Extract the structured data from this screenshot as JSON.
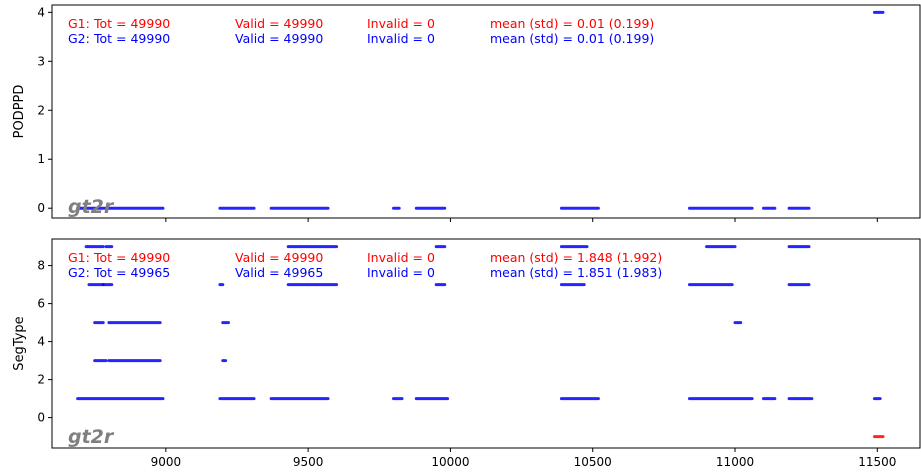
{
  "chart_data": [
    {
      "type": "scatter",
      "ylabel": "PODPPD",
      "ylim": [
        -0.2,
        4.15
      ],
      "yticks": [
        0,
        1,
        2,
        3,
        4
      ],
      "xlim": [
        8600,
        11650
      ],
      "xticks": [
        9000,
        9500,
        10000,
        10500,
        11000,
        11500
      ],
      "watermark": "gt2r",
      "stats": [
        {
          "group": "G1:",
          "tot": "Tot = 49990",
          "valid": "Valid = 49990",
          "invalid": "Invalid = 0",
          "mean": "mean (std) = 0.01 (0.199)",
          "color": "#ff0000"
        },
        {
          "group": "G2:",
          "tot": "Tot = 49990",
          "valid": "Valid = 49990",
          "invalid": "Invalid = 0",
          "mean": "mean (std) = 0.01 (0.199)",
          "color": "#0000ff"
        }
      ],
      "series": [
        {
          "color": "#0000ff",
          "segments": [
            {
              "y": 0,
              "x0": 8690,
              "x1": 8990
            },
            {
              "y": 0,
              "x0": 9190,
              "x1": 9310
            },
            {
              "y": 0,
              "x0": 9370,
              "x1": 9570
            },
            {
              "y": 0,
              "x0": 9800,
              "x1": 9820
            },
            {
              "y": 0,
              "x0": 9880,
              "x1": 9980
            },
            {
              "y": 0,
              "x0": 10390,
              "x1": 10520
            },
            {
              "y": 0,
              "x0": 10840,
              "x1": 11060
            },
            {
              "y": 0,
              "x0": 11100,
              "x1": 11140
            },
            {
              "y": 0,
              "x0": 11190,
              "x1": 11260
            },
            {
              "y": 4,
              "x0": 11490,
              "x1": 11520
            }
          ]
        }
      ]
    },
    {
      "type": "scatter",
      "ylabel": "SegType",
      "ylim": [
        -1.6,
        9.4
      ],
      "yticks": [
        0,
        2,
        4,
        6,
        8
      ],
      "xlim": [
        8600,
        11650
      ],
      "xticks": [
        9000,
        9500,
        10000,
        10500,
        11000,
        11500
      ],
      "watermark": "gt2r",
      "stats": [
        {
          "group": "G1:",
          "tot": "Tot = 49990",
          "valid": "Valid = 49990",
          "invalid": "Invalid = 0",
          "mean": "mean (std) = 1.848 (1.992)",
          "color": "#ff0000"
        },
        {
          "group": "G2:",
          "tot": "Tot = 49965",
          "valid": "Valid = 49965",
          "invalid": "Invalid = 0",
          "mean": "mean (std) = 1.851 (1.983)",
          "color": "#0000ff"
        }
      ],
      "series": [
        {
          "color": "#0000ff",
          "segments": [
            {
              "y": 1,
              "x0": 8690,
              "x1": 8990
            },
            {
              "y": 1,
              "x0": 9190,
              "x1": 9310
            },
            {
              "y": 1,
              "x0": 9370,
              "x1": 9570
            },
            {
              "y": 1,
              "x0": 9800,
              "x1": 9830
            },
            {
              "y": 1,
              "x0": 9880,
              "x1": 9990
            },
            {
              "y": 1,
              "x0": 10390,
              "x1": 10520
            },
            {
              "y": 1,
              "x0": 10840,
              "x1": 11060
            },
            {
              "y": 1,
              "x0": 11100,
              "x1": 11140
            },
            {
              "y": 1,
              "x0": 11190,
              "x1": 11270
            },
            {
              "y": 1,
              "x0": 11490,
              "x1": 11510
            },
            {
              "y": 3,
              "x0": 8750,
              "x1": 8790
            },
            {
              "y": 3,
              "x0": 8800,
              "x1": 8980
            },
            {
              "y": 3,
              "x0": 9200,
              "x1": 9210
            },
            {
              "y": 5,
              "x0": 8750,
              "x1": 8780
            },
            {
              "y": 5,
              "x0": 8800,
              "x1": 8980
            },
            {
              "y": 5,
              "x0": 9200,
              "x1": 9220
            },
            {
              "y": 5,
              "x0": 11000,
              "x1": 11020
            },
            {
              "y": 7,
              "x0": 8730,
              "x1": 8780
            },
            {
              "y": 7,
              "x0": 8780,
              "x1": 8810
            },
            {
              "y": 7,
              "x0": 9190,
              "x1": 9200
            },
            {
              "y": 7,
              "x0": 9430,
              "x1": 9600
            },
            {
              "y": 7,
              "x0": 9950,
              "x1": 9980
            },
            {
              "y": 7,
              "x0": 10390,
              "x1": 10470
            },
            {
              "y": 7,
              "x0": 10840,
              "x1": 10990
            },
            {
              "y": 7,
              "x0": 11190,
              "x1": 11260
            },
            {
              "y": 9,
              "x0": 8720,
              "x1": 8780
            },
            {
              "y": 9,
              "x0": 8790,
              "x1": 8810
            },
            {
              "y": 9,
              "x0": 9430,
              "x1": 9600
            },
            {
              "y": 9,
              "x0": 9950,
              "x1": 9980
            },
            {
              "y": 9,
              "x0": 10390,
              "x1": 10480
            },
            {
              "y": 9,
              "x0": 10900,
              "x1": 11000
            },
            {
              "y": 9,
              "x0": 11190,
              "x1": 11260
            }
          ]
        },
        {
          "color": "#ff0000",
          "segments": [
            {
              "y": -1,
              "x0": 11490,
              "x1": 11520
            }
          ]
        }
      ]
    }
  ]
}
